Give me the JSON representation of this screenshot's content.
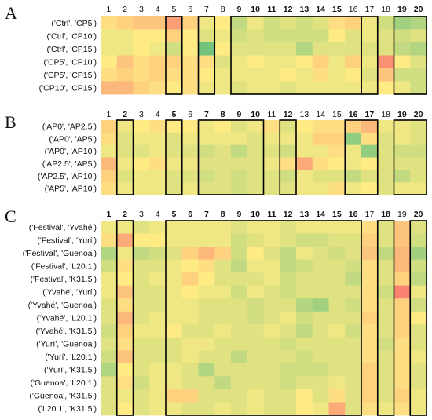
{
  "chart_data": [
    {
      "type": "heatmap",
      "panel": "A",
      "columns": [
        "1",
        "2",
        "3",
        "4",
        "5",
        "6",
        "7",
        "8",
        "9",
        "10",
        "11",
        "12",
        "13",
        "14",
        "15",
        "16",
        "17",
        "18",
        "19",
        "20"
      ],
      "bold_columns": [
        "9",
        "10",
        "11",
        "12",
        "13",
        "14",
        "15",
        "19",
        "20"
      ],
      "boxed_column_groups": [
        [
          "5"
        ],
        [
          "7"
        ],
        [
          "9",
          "10",
          "11",
          "12",
          "13",
          "14",
          "15",
          "16"
        ],
        [
          "17"
        ],
        [
          "19",
          "20"
        ]
      ],
      "rows": [
        "('Ctrl', 'CP5')",
        "('Ctrl', 'CP10')",
        "('Ctrl', 'CP15')",
        "('CP5', 'CP10')",
        "('CP5', 'CP15')",
        "('CP10', 'CP15')"
      ],
      "values": [
        [
          0.55,
          0.6,
          0.65,
          0.65,
          0.8,
          0.6,
          0.45,
          0.5,
          0.3,
          0.45,
          0.35,
          0.4,
          0.35,
          0.4,
          0.55,
          0.6,
          0.45,
          0.35,
          0.2,
          0.25
        ],
        [
          0.45,
          0.45,
          0.5,
          0.5,
          0.6,
          0.5,
          0.4,
          0.45,
          0.35,
          0.4,
          0.35,
          0.35,
          0.35,
          0.35,
          0.5,
          0.4,
          0.45,
          0.4,
          0.35,
          0.4
        ],
        [
          0.45,
          0.45,
          0.5,
          0.45,
          0.35,
          0.5,
          0.05,
          0.5,
          0.4,
          0.4,
          0.4,
          0.4,
          0.25,
          0.4,
          0.4,
          0.4,
          0.4,
          0.4,
          0.3,
          0.25
        ],
        [
          0.5,
          0.65,
          0.55,
          0.6,
          0.6,
          0.55,
          0.55,
          0.4,
          0.45,
          0.5,
          0.45,
          0.45,
          0.5,
          0.6,
          0.45,
          0.6,
          0.45,
          0.85,
          0.5,
          0.4
        ],
        [
          0.55,
          0.6,
          0.55,
          0.6,
          0.55,
          0.55,
          0.5,
          0.45,
          0.45,
          0.45,
          0.45,
          0.5,
          0.45,
          0.55,
          0.45,
          0.5,
          0.4,
          0.65,
          0.35,
          0.35
        ],
        [
          0.7,
          0.7,
          0.6,
          0.55,
          0.5,
          0.55,
          0.45,
          0.45,
          0.4,
          0.45,
          0.45,
          0.4,
          0.45,
          0.45,
          0.45,
          0.45,
          0.45,
          0.5,
          0.45,
          0.35
        ]
      ]
    },
    {
      "type": "heatmap",
      "panel": "B",
      "columns": [
        "1",
        "2",
        "3",
        "4",
        "5",
        "6",
        "7",
        "8",
        "9",
        "10",
        "11",
        "12",
        "13",
        "14",
        "15",
        "16",
        "17",
        "18",
        "19",
        "20"
      ],
      "bold_columns": [
        "2",
        "5",
        "7",
        "8",
        "9",
        "10",
        "12",
        "16",
        "17",
        "19",
        "20"
      ],
      "boxed_column_groups": [
        [
          "2"
        ],
        [
          "5"
        ],
        [
          "7",
          "8",
          "9",
          "10"
        ],
        [
          "12"
        ],
        [
          "16",
          "17"
        ],
        [
          "19",
          "20"
        ]
      ],
      "rows": [
        "('AP0', 'AP2.5')",
        "('AP0', 'AP5')",
        "('AP0', 'AP10')",
        "('AP2.5', 'AP5')",
        "('AP2.5', 'AP10')",
        "('AP5', 'AP10')"
      ],
      "values": [
        [
          0.6,
          0.45,
          0.5,
          0.55,
          0.5,
          0.5,
          0.45,
          0.5,
          0.4,
          0.45,
          0.55,
          0.4,
          0.5,
          0.55,
          0.55,
          0.6,
          0.7,
          0.45,
          0.45,
          0.4
        ],
        [
          0.55,
          0.4,
          0.45,
          0.45,
          0.4,
          0.45,
          0.45,
          0.45,
          0.45,
          0.4,
          0.45,
          0.45,
          0.45,
          0.6,
          0.6,
          0.15,
          0.55,
          0.4,
          0.45,
          0.4
        ],
        [
          0.45,
          0.4,
          0.4,
          0.45,
          0.4,
          0.4,
          0.35,
          0.4,
          0.3,
          0.4,
          0.4,
          0.35,
          0.45,
          0.45,
          0.55,
          0.45,
          0.15,
          0.4,
          0.35,
          0.35
        ],
        [
          0.7,
          0.45,
          0.5,
          0.55,
          0.45,
          0.45,
          0.4,
          0.4,
          0.4,
          0.4,
          0.45,
          0.55,
          0.75,
          0.55,
          0.5,
          0.45,
          0.5,
          0.4,
          0.4,
          0.4
        ],
        [
          0.6,
          0.4,
          0.45,
          0.45,
          0.4,
          0.4,
          0.35,
          0.4,
          0.35,
          0.4,
          0.4,
          0.35,
          0.45,
          0.4,
          0.4,
          0.3,
          0.4,
          0.4,
          0.3,
          0.4
        ],
        [
          0.55,
          0.45,
          0.45,
          0.45,
          0.4,
          0.45,
          0.4,
          0.4,
          0.35,
          0.4,
          0.4,
          0.4,
          0.45,
          0.45,
          0.55,
          0.45,
          0.5,
          0.4,
          0.45,
          0.45
        ]
      ]
    },
    {
      "type": "heatmap",
      "panel": "C",
      "columns": [
        "1",
        "2",
        "3",
        "4",
        "5",
        "6",
        "7",
        "8",
        "9",
        "10",
        "11",
        "12",
        "13",
        "14",
        "15",
        "16",
        "17",
        "18",
        "19",
        "20"
      ],
      "bold_columns": [
        "1",
        "2",
        "5",
        "6",
        "7",
        "8",
        "9",
        "10",
        "11",
        "12",
        "13",
        "14",
        "15",
        "16",
        "18",
        "20"
      ],
      "boxed_column_groups": [
        [
          "2"
        ],
        [
          "5",
          "6",
          "7",
          "8",
          "9",
          "10",
          "11",
          "12",
          "13",
          "14",
          "15",
          "16"
        ],
        [
          "18"
        ],
        [
          "20"
        ]
      ],
      "rows": [
        "('Festival', 'Yvahé')",
        "('Festival', 'Yurí')",
        "('Festival', 'Guenoa')",
        "('Festival', 'L20.1')",
        "('Festival', 'K31.5')",
        "('Yvahé', 'Yurí')",
        "('Yvahé', 'Guenoa')",
        "('Yvahé', 'L20.1')",
        "('Yvahé', 'K31.5')",
        "('Yurí', 'Guenoa')",
        "('Yurí', 'L20.1')",
        "('Yurí', 'K31.5')",
        "('Guenoa', 'L20.1')",
        "('Guenoa', 'K31.5')",
        "('L20.1', 'K31.5')"
      ],
      "values": [
        [
          0.45,
          0.45,
          0.4,
          0.45,
          0.45,
          0.45,
          0.45,
          0.45,
          0.4,
          0.45,
          0.45,
          0.4,
          0.45,
          0.45,
          0.45,
          0.45,
          0.55,
          0.4,
          0.65,
          0.4
        ],
        [
          0.55,
          0.75,
          0.5,
          0.5,
          0.45,
          0.45,
          0.45,
          0.45,
          0.35,
          0.4,
          0.45,
          0.4,
          0.35,
          0.35,
          0.4,
          0.4,
          0.6,
          0.4,
          0.65,
          0.35
        ],
        [
          0.25,
          0.45,
          0.3,
          0.35,
          0.4,
          0.6,
          0.7,
          0.6,
          0.35,
          0.5,
          0.4,
          0.3,
          0.45,
          0.4,
          0.35,
          0.4,
          0.65,
          0.3,
          0.7,
          0.2
        ],
        [
          0.35,
          0.55,
          0.4,
          0.4,
          0.45,
          0.5,
          0.55,
          0.4,
          0.3,
          0.45,
          0.45,
          0.3,
          0.35,
          0.4,
          0.4,
          0.35,
          0.55,
          0.4,
          0.7,
          0.35
        ],
        [
          0.45,
          0.5,
          0.4,
          0.45,
          0.45,
          0.6,
          0.5,
          0.4,
          0.4,
          0.4,
          0.45,
          0.35,
          0.4,
          0.4,
          0.4,
          0.3,
          0.55,
          0.4,
          0.6,
          0.3
        ],
        [
          0.45,
          0.65,
          0.4,
          0.4,
          0.45,
          0.5,
          0.45,
          0.45,
          0.35,
          0.45,
          0.4,
          0.35,
          0.4,
          0.4,
          0.4,
          0.4,
          0.55,
          0.35,
          0.9,
          0.45
        ],
        [
          0.4,
          0.55,
          0.4,
          0.4,
          0.45,
          0.45,
          0.4,
          0.4,
          0.4,
          0.35,
          0.4,
          0.4,
          0.25,
          0.2,
          0.4,
          0.35,
          0.55,
          0.4,
          0.6,
          0.35
        ],
        [
          0.4,
          0.7,
          0.4,
          0.45,
          0.45,
          0.45,
          0.4,
          0.4,
          0.4,
          0.35,
          0.4,
          0.45,
          0.35,
          0.4,
          0.4,
          0.4,
          0.6,
          0.4,
          0.6,
          0.5
        ],
        [
          0.35,
          0.6,
          0.45,
          0.45,
          0.5,
          0.4,
          0.4,
          0.45,
          0.4,
          0.4,
          0.45,
          0.4,
          0.3,
          0.4,
          0.45,
          0.35,
          0.55,
          0.4,
          0.6,
          0.4
        ],
        [
          0.4,
          0.55,
          0.4,
          0.4,
          0.4,
          0.45,
          0.45,
          0.4,
          0.4,
          0.4,
          0.4,
          0.35,
          0.4,
          0.4,
          0.4,
          0.4,
          0.55,
          0.35,
          0.55,
          0.4
        ],
        [
          0.35,
          0.65,
          0.4,
          0.4,
          0.4,
          0.45,
          0.4,
          0.4,
          0.3,
          0.4,
          0.4,
          0.4,
          0.35,
          0.4,
          0.4,
          0.4,
          0.55,
          0.4,
          0.55,
          0.45
        ],
        [
          0.25,
          0.5,
          0.4,
          0.45,
          0.45,
          0.4,
          0.25,
          0.4,
          0.4,
          0.4,
          0.4,
          0.35,
          0.35,
          0.35,
          0.4,
          0.4,
          0.6,
          0.4,
          0.55,
          0.4
        ],
        [
          0.4,
          0.55,
          0.35,
          0.45,
          0.45,
          0.4,
          0.4,
          0.3,
          0.4,
          0.4,
          0.4,
          0.35,
          0.4,
          0.4,
          0.45,
          0.4,
          0.6,
          0.4,
          0.55,
          0.4
        ],
        [
          0.4,
          0.45,
          0.4,
          0.45,
          0.6,
          0.6,
          0.4,
          0.4,
          0.4,
          0.45,
          0.4,
          0.4,
          0.5,
          0.4,
          0.55,
          0.4,
          0.6,
          0.4,
          0.6,
          0.45
        ],
        [
          0.4,
          0.5,
          0.4,
          0.45,
          0.45,
          0.4,
          0.4,
          0.45,
          0.4,
          0.45,
          0.4,
          0.4,
          0.5,
          0.45,
          0.75,
          0.4,
          0.55,
          0.45,
          0.55,
          0.45
        ]
      ]
    }
  ],
  "colors": {
    "low": "#63be7b",
    "mid": "#ffeb84",
    "high": "#f8696b"
  }
}
